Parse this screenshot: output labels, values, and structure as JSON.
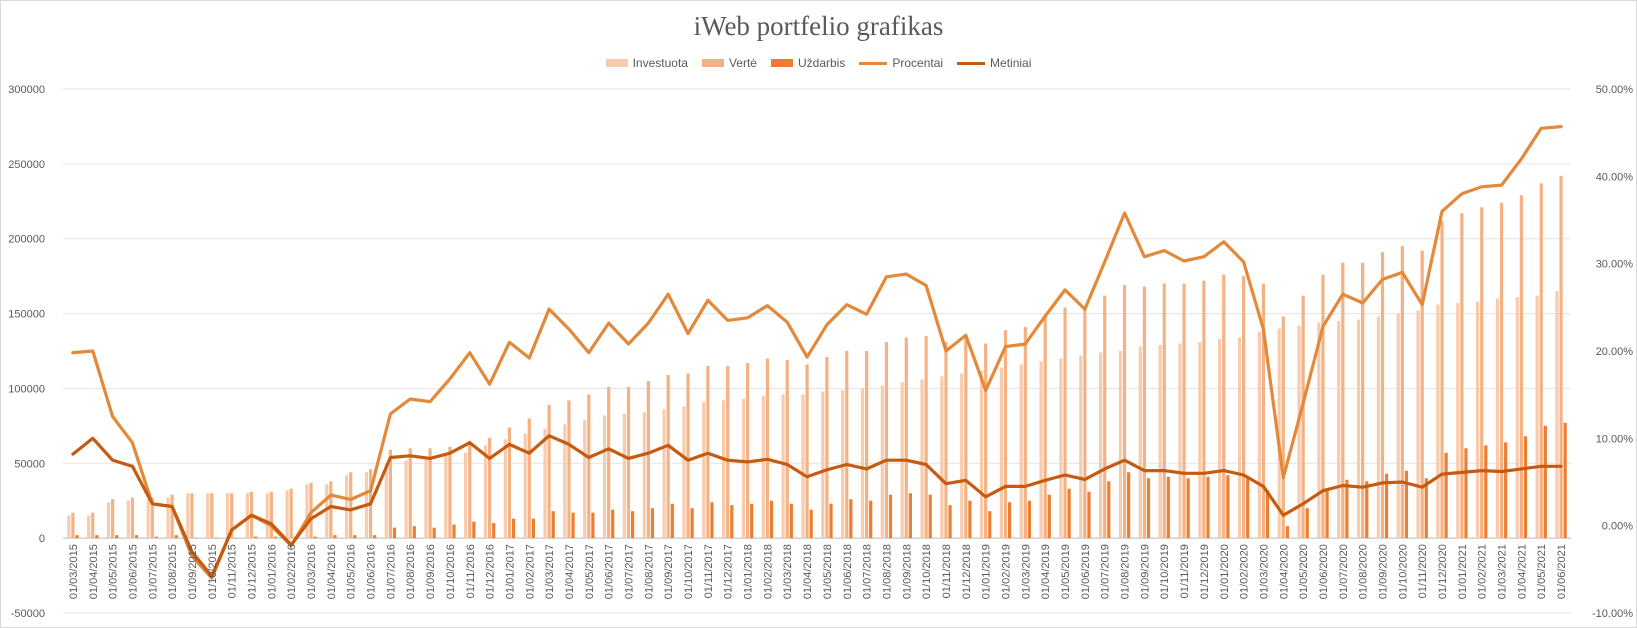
{
  "chart_data": {
    "type": "bar",
    "title": "iWeb portfelio grafikas",
    "xlabel": "",
    "ylabel": "",
    "ylim": [
      -50000,
      300000
    ],
    "y2lim": [
      -0.1,
      0.5
    ],
    "y_ticks": [
      "-50000",
      "0",
      "50000",
      "100000",
      "150000",
      "200000",
      "250000",
      "300000"
    ],
    "y2_ticks": [
      "-10.00%",
      "0.00%",
      "10.00%",
      "20.00%",
      "30.00%",
      "40.00%",
      "50.00%"
    ],
    "grid": "horizontal",
    "legend_position": "top",
    "categories": [
      "01/03/2015",
      "01/04/2015",
      "01/05/2015",
      "01/06/2015",
      "01/07/2015",
      "01/08/2015",
      "01/09/2015",
      "01/10/2015",
      "01/11/2015",
      "01/12/2015",
      "01/01/2016",
      "01/02/2016",
      "01/03/2016",
      "01/04/2016",
      "01/05/2016",
      "01/06/2016",
      "01/07/2016",
      "01/08/2016",
      "01/09/2016",
      "01/10/2016",
      "01/11/2016",
      "01/12/2016",
      "01/01/2017",
      "01/02/2017",
      "01/03/2017",
      "01/04/2017",
      "01/05/2017",
      "01/06/2017",
      "01/07/2017",
      "01/08/2017",
      "01/09/2017",
      "01/10/2017",
      "01/11/2017",
      "01/12/2017",
      "01/01/2018",
      "01/02/2018",
      "01/03/2018",
      "01/04/2018",
      "01/05/2018",
      "01/06/2018",
      "01/07/2018",
      "01/08/2018",
      "01/09/2018",
      "01/10/2018",
      "01/11/2018",
      "01/12/2018",
      "01/01/2019",
      "01/02/2019",
      "01/03/2019",
      "01/04/2019",
      "01/05/2019",
      "01/06/2019",
      "01/07/2019",
      "01/08/2019",
      "01/09/2019",
      "01/10/2019",
      "01/11/2019",
      "01/12/2019",
      "01/01/2020",
      "01/02/2020",
      "01/03/2020",
      "01/04/2020",
      "01/05/2020",
      "01/06/2020",
      "01/07/2020",
      "01/08/2020",
      "01/09/2020",
      "01/10/2020",
      "01/11/2020",
      "01/12/2020",
      "01/01/2021",
      "01/02/2021",
      "01/03/2021",
      "01/04/2021",
      "01/05/2021",
      "01/06/2021"
    ],
    "series": [
      {
        "name": "Investuota",
        "type": "bar",
        "axis": "left",
        "color": "#f8cbad",
        "values": [
          15000,
          15000,
          24000,
          25000,
          26000,
          27000,
          30000,
          30000,
          30000,
          30000,
          30000,
          32000,
          36000,
          36000,
          42000,
          44000,
          50000,
          52000,
          53000,
          57000,
          57000,
          62000,
          66000,
          70000,
          73000,
          76000,
          79000,
          82000,
          83000,
          84000,
          86000,
          88000,
          91000,
          92000,
          93000,
          95000,
          96000,
          96000,
          98000,
          99000,
          100000,
          102000,
          104000,
          106000,
          108000,
          110000,
          112000,
          114000,
          116000,
          118000,
          120000,
          122000,
          124000,
          125000,
          128000,
          129000,
          130000,
          131000,
          133000,
          134000,
          138000,
          140000,
          142000,
          144000,
          145000,
          146000,
          148000,
          150000,
          152000,
          156000,
          157000,
          158000,
          160000,
          161000,
          162000,
          165000
        ]
      },
      {
        "name": "Vertė",
        "type": "bar",
        "axis": "left",
        "color": "#f4b183",
        "values": [
          17000,
          17000,
          26000,
          27000,
          27000,
          29000,
          30000,
          30000,
          30000,
          31000,
          31000,
          33000,
          37000,
          38000,
          44000,
          46000,
          59000,
          60000,
          60000,
          61000,
          65000,
          67000,
          74000,
          80000,
          89000,
          92000,
          96000,
          101000,
          101000,
          105000,
          109000,
          110000,
          115000,
          115000,
          117000,
          120000,
          119000,
          116000,
          121000,
          125000,
          125000,
          131000,
          134000,
          135000,
          131000,
          134000,
          130000,
          139000,
          141000,
          148000,
          154000,
          153000,
          162000,
          169000,
          168000,
          170000,
          170000,
          172000,
          176000,
          175000,
          170000,
          148000,
          162000,
          176000,
          184000,
          184000,
          191000,
          195000,
          192000,
          212000,
          217000,
          221000,
          224000,
          229000,
          237000,
          242000
        ]
      },
      {
        "name": "Uždarbis",
        "type": "bar",
        "axis": "left",
        "color": "#ed7d31",
        "values": [
          2000,
          2000,
          2000,
          2000,
          1000,
          2000,
          0,
          0,
          0,
          1000,
          1000,
          1000,
          1000,
          2000,
          2000,
          2000,
          7000,
          8000,
          7000,
          9000,
          11000,
          10000,
          13000,
          13000,
          18000,
          17000,
          17000,
          19000,
          18000,
          20000,
          23000,
          20000,
          24000,
          22000,
          23000,
          25000,
          23000,
          19000,
          23000,
          26000,
          25000,
          29000,
          30000,
          29000,
          22000,
          25000,
          18000,
          24000,
          25000,
          29000,
          33000,
          31000,
          38000,
          44000,
          40000,
          41000,
          40000,
          41000,
          42000,
          41000,
          32000,
          8000,
          20000,
          32000,
          39000,
          38000,
          43000,
          45000,
          40000,
          57000,
          60000,
          62000,
          64000,
          68000,
          75000,
          77000
        ]
      },
      {
        "name": "Procentai",
        "type": "line",
        "axis": "right",
        "color": "#e2893a",
        "values": [
          0.198,
          0.2,
          0.125,
          0.095,
          0.025,
          0.022,
          -0.035,
          -0.06,
          -0.005,
          0.012,
          0.0,
          -0.023,
          0.015,
          0.035,
          0.03,
          0.04,
          0.128,
          0.145,
          0.142,
          0.168,
          0.198,
          0.162,
          0.21,
          0.192,
          0.248,
          0.225,
          0.198,
          0.232,
          0.208,
          0.232,
          0.265,
          0.22,
          0.258,
          0.235,
          0.238,
          0.252,
          0.233,
          0.193,
          0.23,
          0.253,
          0.242,
          0.285,
          0.288,
          0.275,
          0.2,
          0.218,
          0.155,
          0.205,
          0.208,
          0.24,
          0.27,
          0.248,
          0.302,
          0.358,
          0.308,
          0.315,
          0.303,
          0.308,
          0.325,
          0.302,
          0.225,
          0.055,
          0.14,
          0.228,
          0.265,
          0.255,
          0.282,
          0.29,
          0.253,
          0.36,
          0.38,
          0.388,
          0.39,
          0.42,
          0.455,
          0.457
        ]
      },
      {
        "name": "Metiniai",
        "type": "line",
        "axis": "right",
        "color": "#c55a11",
        "values": [
          0.082,
          0.1,
          0.075,
          0.068,
          0.025,
          0.022,
          -0.03,
          -0.058,
          -0.005,
          0.012,
          0.002,
          -0.022,
          0.008,
          0.022,
          0.018,
          0.025,
          0.078,
          0.08,
          0.077,
          0.083,
          0.095,
          0.077,
          0.093,
          0.083,
          0.103,
          0.093,
          0.078,
          0.088,
          0.077,
          0.083,
          0.092,
          0.075,
          0.083,
          0.075,
          0.073,
          0.076,
          0.07,
          0.056,
          0.064,
          0.07,
          0.065,
          0.075,
          0.075,
          0.07,
          0.048,
          0.052,
          0.033,
          0.045,
          0.045,
          0.052,
          0.058,
          0.053,
          0.065,
          0.075,
          0.063,
          0.063,
          0.06,
          0.06,
          0.063,
          0.058,
          0.045,
          0.012,
          0.025,
          0.04,
          0.046,
          0.044,
          0.049,
          0.05,
          0.044,
          0.059,
          0.061,
          0.063,
          0.062,
          0.065,
          0.068,
          0.068
        ]
      }
    ]
  }
}
